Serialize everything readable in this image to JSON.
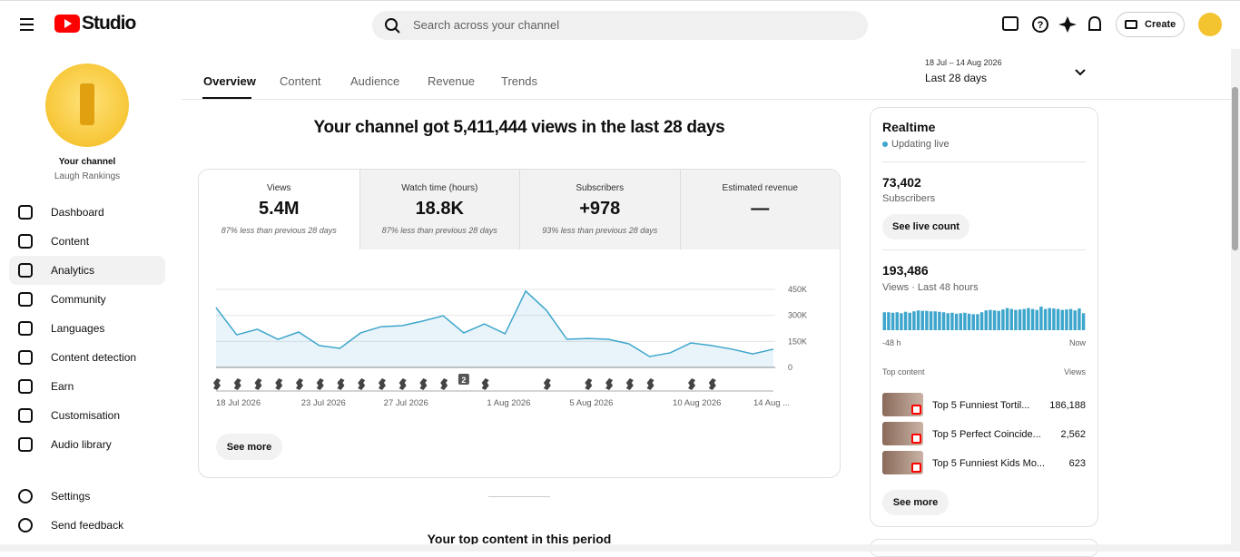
{
  "header": {
    "logo": "Studio",
    "search_placeholder": "Search across your channel",
    "create": "Create"
  },
  "sidebar": {
    "channel_label": "Your channel",
    "channel_name": "Laugh Rankings",
    "nav": [
      "Dashboard",
      "Content",
      "Analytics",
      "Community",
      "Languages",
      "Content detection",
      "Earn",
      "Customisation",
      "Audio library"
    ],
    "bottom": [
      "Settings",
      "Send feedback"
    ]
  },
  "tabs": [
    "Overview",
    "Content",
    "Audience",
    "Revenue",
    "Trends"
  ],
  "date_range": {
    "dates": "18 Jul – 14 Aug 2026",
    "label": "Last 28 days"
  },
  "headline": "Your channel got 5,411,444 views in the last 28 days",
  "metrics": [
    {
      "label": "Views",
      "value": "5.4M",
      "note": "87% less than previous 28 days"
    },
    {
      "label": "Watch time (hours)",
      "value": "18.8K",
      "note": "87% less than previous 28 days"
    },
    {
      "label": "Subscribers",
      "value": "+978",
      "note": "93% less than previous 28 days"
    },
    {
      "label": "Estimated revenue",
      "value": "—"
    }
  ],
  "see_more": "See more",
  "section_title": "Your top content in this period",
  "realtime": {
    "title": "Realtime",
    "status": "Updating live",
    "subscribers": "73,402",
    "subscribers_label": "Subscribers",
    "live_button": "See live count",
    "views": "193,486",
    "views_label": "Views · Last 48 hours",
    "top_label": "Top content",
    "views_header": "Views",
    "top_content": [
      {
        "title": "Top 5 Funniest Tortil...",
        "views": "186,188"
      },
      {
        "title": "Top 5 Perfect Coincide...",
        "views": "2,562"
      },
      {
        "title": "Top 5 Funniest Kids Mo...",
        "views": "623"
      }
    ],
    "see_more": "See more"
  },
  "chart_data": [
    {
      "type": "line",
      "color": "#3ea6cc",
      "grid": true,
      "categories": [
        "18 Jul 2026",
        null,
        null,
        null,
        null,
        "23 Jul 2026",
        null,
        null,
        null,
        "27 Jul 2026",
        null,
        null,
        null,
        null,
        "1 Aug 2026",
        null,
        null,
        null,
        "5 Aug 2026",
        null,
        null,
        null,
        null,
        "10 Aug 2026",
        null,
        null,
        null,
        "14 Aug ..."
      ],
      "values": [
        345000,
        188000,
        220000,
        162000,
        204000,
        126000,
        110000,
        199000,
        235000,
        241000,
        267000,
        298000,
        199000,
        251000,
        194000,
        440000,
        330000,
        162000,
        167000,
        162000,
        136000,
        63000,
        84000,
        141000,
        126000,
        105000,
        78000,
        105000
      ],
      "ylim": [
        0,
        450000
      ],
      "yticks": [
        0,
        {
          "value": 150000,
          "label": "150K"
        },
        {
          "value": 300000,
          "label": "300K"
        },
        {
          "value": 450000,
          "label": "450K"
        }
      ],
      "annotation": "2"
    },
    {
      "type": "bar",
      "color": "#3ea6cc",
      "categories": [
        "-48 h",
        null,
        null,
        null,
        null,
        null,
        null,
        null,
        null,
        null,
        null,
        null,
        null,
        null,
        null,
        null,
        null,
        null,
        null,
        null,
        null,
        null,
        null,
        null,
        null,
        null,
        null,
        null,
        null,
        null,
        null,
        null,
        null,
        null,
        null,
        null,
        null,
        null,
        null,
        null,
        null,
        null,
        null,
        null,
        null,
        null,
        null,
        "Now"
      ],
      "values": [
        3800,
        3800,
        3700,
        3800,
        3600,
        3900,
        3700,
        4000,
        4200,
        4100,
        4100,
        4000,
        4000,
        3900,
        3800,
        3600,
        3700,
        3500,
        3600,
        3700,
        3500,
        3400,
        3400,
        3800,
        4200,
        4300,
        4200,
        4100,
        4400,
        4700,
        4500,
        4300,
        4400,
        4500,
        4700,
        4500,
        4300,
        5000,
        4500,
        4700,
        4600,
        4500,
        4300,
        4400,
        4500,
        4200,
        4600,
        3600
      ]
    }
  ]
}
